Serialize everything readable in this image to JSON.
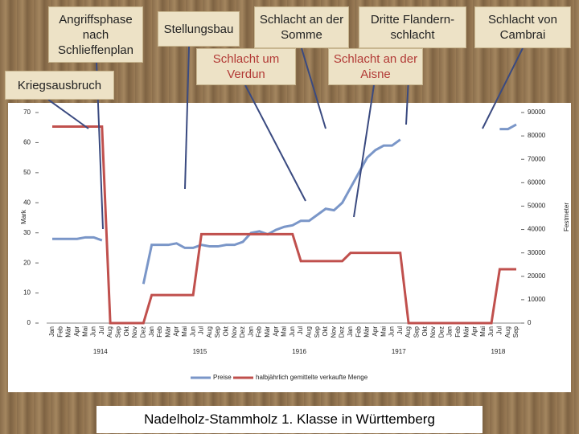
{
  "chart_data": {
    "type": "line",
    "title": "Nadelholz-Stammholz 1. Klasse in Württemberg",
    "ylabel": "Mark",
    "y2label": "Festmeter",
    "categories": [
      "Jan",
      "Feb",
      "Mär",
      "Apr",
      "Mai",
      "Jun",
      "Jul",
      "Aug",
      "Sep",
      "Okt",
      "Nov",
      "Dez",
      "Jan",
      "Feb",
      "Mär",
      "Apr",
      "Mai",
      "Jun",
      "Jul",
      "Aug",
      "Sep",
      "Okt",
      "Nov",
      "Dez",
      "Jan",
      "Feb",
      "Mär",
      "Apr",
      "Mai",
      "Jun",
      "Jul",
      "Aug",
      "Sep",
      "Okt",
      "Nov",
      "Dez",
      "Jan",
      "Feb",
      "Mär",
      "Apr",
      "Mai",
      "Jun",
      "Jul",
      "Aug",
      "Sep",
      "Okt",
      "Nov",
      "Dez",
      "Jan",
      "Feb",
      "Mär",
      "Apr",
      "Mai",
      "Jun",
      "Jul",
      "Aug",
      "Sep"
    ],
    "year_labels": [
      "1914",
      "1915",
      "1916",
      "1917",
      "1918"
    ],
    "series": [
      {
        "name": "Preise",
        "color": "#7a96c8",
        "values": [
          28,
          28,
          28,
          28,
          28.5,
          28.5,
          27.5,
          null,
          null,
          null,
          null,
          13,
          26,
          26,
          26,
          26.5,
          25,
          25,
          26,
          25.5,
          25.5,
          26,
          26,
          27,
          30,
          30.5,
          29.5,
          31,
          32,
          32.5,
          34,
          34,
          36,
          38,
          37.5,
          40,
          45,
          50,
          55,
          57.5,
          59,
          59,
          61,
          null,
          null,
          null,
          null,
          null,
          null,
          null,
          null,
          null,
          null,
          null,
          64.5,
          64.5,
          66
        ]
      },
      {
        "name": "halbjährlich gemittelte verkaufte Menge",
        "color": "#c0504d",
        "axis": "y2",
        "values": [
          84000,
          84000,
          84000,
          84000,
          84000,
          84000,
          84000,
          0,
          0,
          0,
          0,
          0,
          12000,
          12000,
          12000,
          12000,
          12000,
          12000,
          38000,
          38000,
          38000,
          38000,
          38000,
          38000,
          38000,
          38000,
          38000,
          38000,
          38000,
          38000,
          26500,
          26500,
          26500,
          26500,
          26500,
          26500,
          30000,
          30000,
          30000,
          30000,
          30000,
          30000,
          30000,
          0,
          0,
          0,
          0,
          0,
          0,
          0,
          0,
          0,
          0,
          0,
          23000,
          23000,
          23000
        ]
      }
    ],
    "ylim": [
      0,
      70
    ],
    "yticks": [
      0,
      10,
      20,
      30,
      40,
      50,
      60,
      70
    ],
    "y2lim": [
      0,
      90000
    ],
    "y2ticks": [
      0,
      10000,
      20000,
      30000,
      40000,
      50000,
      60000,
      70000,
      80000,
      90000
    ],
    "annotations": [
      "Angriffsphase nach Schlieffenplan",
      "Stellungsbau",
      "Schlacht an der Somme",
      "Dritte Flandern-schlacht",
      "Schlacht von Cambrai",
      "Kriegsausbruch",
      "Schlacht um Verdun",
      "Schlacht an der Aisne"
    ]
  }
}
